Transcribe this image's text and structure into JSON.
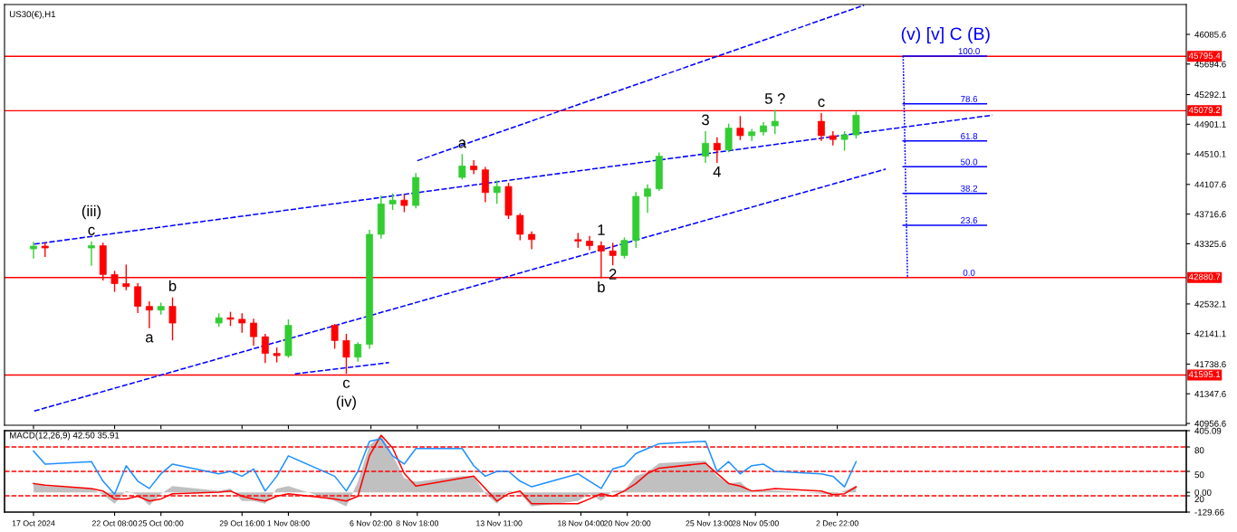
{
  "chart_data": [
    {
      "type": "candlestick",
      "title": "US30(€),H1",
      "x": [
        "2024-10-17T16:00",
        "2024-10-18T08:00",
        "2024-10-21T00:00",
        "2024-10-21T16:00",
        "2024-10-22T08:00",
        "2024-10-23T00:00",
        "2024-10-23T16:00",
        "2024-10-24T08:00",
        "2024-10-25T00:00",
        "2024-10-25T16:00",
        "2024-10-28T08:00",
        "2024-10-29T00:00",
        "2024-10-29T16:00",
        "2024-10-30T08:00",
        "2024-10-31T00:00",
        "2024-10-31T16:00",
        "2024-11-01T08:00",
        "2024-11-04T00:00",
        "2024-11-04T16:00",
        "2024-11-05T08:00",
        "2024-11-06T00:00",
        "2024-11-06T16:00",
        "2024-11-07T08:00",
        "2024-11-08T00:00",
        "2024-11-08T16:00",
        "2024-11-11T08:00",
        "2024-11-12T00:00",
        "2024-11-12T16:00",
        "2024-11-13T08:00",
        "2024-11-14T00:00",
        "2024-11-14T16:00",
        "2024-11-15T08:00",
        "2024-11-18T00:00",
        "2024-11-18T16:00",
        "2024-11-19T08:00",
        "2024-11-20T00:00",
        "2024-11-20T16:00",
        "2024-11-21T08:00",
        "2024-11-22T00:00",
        "2024-11-22T16:00",
        "2024-11-25T08:00",
        "2024-11-26T00:00",
        "2024-11-26T16:00",
        "2024-11-27T08:00",
        "2024-11-28T00:00",
        "2024-11-28T16:00",
        "2024-11-29T08:00",
        "2024-12-02T00:00",
        "2024-12-02T16:00",
        "2024-12-03T08:00",
        "2024-12-04T00:00"
      ],
      "ohlc": [
        [
          43258,
          43342,
          43139,
          43294
        ],
        [
          43294,
          43330,
          43160,
          43270
        ],
        [
          43270,
          43350,
          43043,
          43300
        ],
        [
          43300,
          43330,
          42850,
          42920
        ],
        [
          42920,
          42960,
          42700,
          42800
        ],
        [
          42800,
          43043,
          42720,
          42760
        ],
        [
          42760,
          42800,
          42420,
          42500
        ],
        [
          42500,
          42560,
          42220,
          42450
        ],
        [
          42450,
          42540,
          42400,
          42500
        ],
        [
          42500,
          42610,
          42060,
          42280
        ],
        [
          42280,
          42400,
          42240,
          42350
        ],
        [
          42350,
          42420,
          42250,
          42330
        ],
        [
          42330,
          42400,
          42160,
          42280
        ],
        [
          42280,
          42330,
          41990,
          42100
        ],
        [
          42100,
          42130,
          41760,
          41880
        ],
        [
          41880,
          41950,
          41770,
          41850
        ],
        [
          41850,
          42320,
          41830,
          42250
        ],
        [
          42250,
          42260,
          41950,
          42050
        ],
        [
          42050,
          42130,
          41620,
          41830
        ],
        [
          41830,
          42020,
          41780,
          42000
        ],
        [
          42000,
          43500,
          41950,
          43450
        ],
        [
          43450,
          43950,
          43400,
          43850
        ],
        [
          43850,
          43980,
          43780,
          43900
        ],
        [
          43900,
          43970,
          43750,
          43830
        ],
        [
          43830,
          44250,
          43800,
          44200
        ],
        [
          44200,
          44500,
          44180,
          44350
        ],
        [
          44350,
          44420,
          44250,
          44300
        ],
        [
          44300,
          44330,
          43880,
          44000
        ],
        [
          44000,
          44150,
          43860,
          44080
        ],
        [
          44080,
          44120,
          43660,
          43700
        ],
        [
          43700,
          43720,
          43380,
          43450
        ],
        [
          43450,
          43480,
          43260,
          43380
        ],
        [
          43380,
          43460,
          43280,
          43360
        ],
        [
          43360,
          43420,
          43250,
          43300
        ],
        [
          43300,
          43350,
          42880,
          43230
        ],
        [
          43230,
          43330,
          43050,
          43170
        ],
        [
          43170,
          43400,
          43140,
          43370
        ],
        [
          43370,
          44000,
          43280,
          43950
        ],
        [
          43950,
          44100,
          43740,
          44050
        ],
        [
          44050,
          44520,
          44030,
          44480
        ],
        [
          44480,
          44800,
          44400,
          44650
        ],
        [
          44650,
          44720,
          44400,
          44560
        ],
        [
          44560,
          44900,
          44540,
          44850
        ],
        [
          44850,
          45000,
          44700,
          44750
        ],
        [
          44750,
          44830,
          44690,
          44800
        ],
        [
          44800,
          44920,
          44760,
          44880
        ],
        [
          44880,
          45080,
          44780,
          44940
        ],
        [
          44940,
          45040,
          44690,
          44750
        ],
        [
          44750,
          44800,
          44630,
          44700
        ],
        [
          44700,
          44800,
          44560,
          44760
        ],
        [
          44760,
          45060,
          44720,
          45020
        ]
      ],
      "colors": [
        "#32cd32",
        "#ff0000",
        "#32cd32",
        "#ff0000",
        "#ff0000",
        "#ff0000",
        "#ff0000",
        "#ff0000",
        "#32cd32",
        "#ff0000",
        "#32cd32",
        "#ff0000",
        "#ff0000",
        "#ff0000",
        "#ff0000",
        "#ff0000",
        "#32cd32",
        "#ff0000",
        "#ff0000",
        "#32cd32",
        "#32cd32",
        "#32cd32",
        "#32cd32",
        "#ff0000",
        "#32cd32",
        "#32cd32",
        "#ff0000",
        "#ff0000",
        "#32cd32",
        "#ff0000",
        "#ff0000",
        "#ff0000",
        "#ff0000",
        "#ff0000",
        "#ff0000",
        "#ff0000",
        "#32cd32",
        "#32cd32",
        "#32cd32",
        "#32cd32",
        "#32cd32",
        "#ff0000",
        "#32cd32",
        "#ff0000",
        "#32cd32",
        "#32cd32",
        "#32cd32",
        "#ff0000",
        "#ff0000",
        "#32cd32",
        "#32cd32"
      ],
      "series": [
        {
          "type": "line",
          "color": "#0000ff",
          "line_style": "dashed",
          "x": [
            "2024-10-17T17:00",
            "2024-12-05T17:00"
          ],
          "values": [
            41120,
            44310
          ]
        },
        {
          "type": "line",
          "color": "#0000ff",
          "line_style": "dashed",
          "x": [
            "2024-11-01T17:00",
            "2024-11-07T03:00"
          ],
          "values": [
            41610,
            41760
          ]
        },
        {
          "type": "line",
          "color": "#0000ff",
          "line_style": "dashed",
          "x": [
            "2024-10-17T17:00",
            "2024-12-11T20:00"
          ],
          "values": [
            43320,
            45020
          ]
        },
        {
          "type": "line",
          "color": "#0000ff",
          "line_style": "dashed",
          "x": [
            "2024-11-08T18:00",
            "2024-12-04T11:00"
          ],
          "values": [
            44420,
            46470
          ]
        },
        {
          "type": "line",
          "color": "#0000ff",
          "line_style": "dotted",
          "x": [
            "2024-12-06T17:00",
            "2024-12-06T23:00"
          ],
          "values": [
            45800,
            42880
          ]
        },
        {
          "type": "line",
          "color": "#0000ff",
          "line_style": "solid",
          "x": [
            "2024-12-06T17:00",
            "2024-12-11T12:00"
          ],
          "values": [
            45800,
            45800
          ]
        },
        {
          "type": "line",
          "color": "#0000ff",
          "line_style": "solid",
          "x": [
            "2024-12-06T17:00",
            "2024-12-11T12:00"
          ],
          "values": [
            45170,
            45170
          ]
        },
        {
          "type": "line",
          "color": "#0000ff",
          "line_style": "solid",
          "x": [
            "2024-12-06T17:00",
            "2024-12-11T12:00"
          ],
          "values": [
            44680,
            44680
          ]
        },
        {
          "type": "line",
          "color": "#0000ff",
          "line_style": "solid",
          "x": [
            "2024-12-06T17:00",
            "2024-12-11T12:00"
          ],
          "values": [
            44340,
            44340
          ]
        },
        {
          "type": "line",
          "color": "#0000ff",
          "line_style": "solid",
          "x": [
            "2024-12-06T17:00",
            "2024-12-11T12:00"
          ],
          "values": [
            43990,
            43990
          ]
        },
        {
          "type": "line",
          "color": "#0000ff",
          "line_style": "solid",
          "x": [
            "2024-12-06T17:00",
            "2024-12-11T12:00"
          ],
          "values": [
            43570,
            43570
          ]
        }
      ],
      "ref_lines": [
        {
          "axis": "y",
          "value": 45795.4,
          "label": "45795.4",
          "color": "#ff0000"
        },
        {
          "axis": "y",
          "value": 45079.2,
          "label": "45079.2",
          "color": "#ff0000"
        },
        {
          "axis": "y",
          "value": 42880.7,
          "label": "42880.7",
          "color": "#ff0000"
        },
        {
          "axis": "y",
          "value": 41595.1,
          "label": "41595.1",
          "color": "#ff0000"
        }
      ],
      "annotations": [
        {
          "text": "c",
          "x": "2024-10-21T00:00",
          "y": 43350
        },
        {
          "text": "(iii)",
          "x": "2024-10-21T00:00",
          "y": 43350
        },
        {
          "text": "a",
          "x": "2024-10-24T08:00",
          "y": 42220
        },
        {
          "text": "b",
          "x": "2024-10-25T16:00",
          "y": 42610
        },
        {
          "text": "c",
          "x": "2024-11-04T16:00",
          "y": 41620
        },
        {
          "text": "(iv)",
          "x": "2024-11-04T16:00",
          "y": 41620
        },
        {
          "text": "a",
          "x": "2024-11-11T08:00",
          "y": 44500
        },
        {
          "text": "1",
          "x": "2024-11-19T08:00",
          "y": 43350
        },
        {
          "text": "b",
          "x": "2024-11-19T08:00",
          "y": 42880
        },
        {
          "text": "2",
          "x": "2024-11-20T00:00",
          "y": 43050
        },
        {
          "text": "3",
          "x": "2024-11-25T08:00",
          "y": 44800
        },
        {
          "text": "4",
          "x": "2024-11-26T00:00",
          "y": 44400
        },
        {
          "text": "5 ?",
          "x": "2024-11-29T08:00",
          "y": 45080
        },
        {
          "text": "c",
          "x": "2024-12-02T00:00",
          "y": 45040
        },
        {
          "text": "(v) [v] C (B)",
          "x": "2024-12-06T17:00",
          "y": 45800
        },
        {
          "text": "100.0",
          "x": "2024-12-10T12:00",
          "y": 45800
        },
        {
          "text": "78.6",
          "x": "2024-12-10T12:00",
          "y": 45170
        },
        {
          "text": "61.8",
          "x": "2024-12-10T12:00",
          "y": 44680
        },
        {
          "text": "50.0",
          "x": "2024-12-10T12:00",
          "y": 44340
        },
        {
          "text": "38.2",
          "x": "2024-12-10T12:00",
          "y": 43990
        },
        {
          "text": "23.6",
          "x": "2024-12-10T12:00",
          "y": 43570
        },
        {
          "text": "0.0",
          "x": "2024-12-10T12:00",
          "y": 42880.7
        }
      ],
      "xlim": [
        "2024-10-16T00:00",
        "2024-12-23T00:00"
      ],
      "xticks": [
        {
          "value": "2024-10-17T16:00",
          "label": null
        },
        {
          "value": "2024-10-22T08:00",
          "label": null
        },
        {
          "value": "2024-10-25T00:00",
          "label": null
        },
        {
          "value": "2024-10-29T16:00",
          "label": null
        },
        {
          "value": "2024-11-01T08:00",
          "label": null
        },
        {
          "value": "2024-11-06T02:00",
          "label": null
        },
        {
          "value": "2024-11-08T18:00",
          "label": null
        },
        {
          "value": "2024-11-13T11:00",
          "label": null
        },
        {
          "value": "2024-11-18T04:00",
          "label": null
        },
        {
          "value": "2024-11-20T20:00",
          "label": null
        },
        {
          "value": "2024-11-25T13:00",
          "label": null
        },
        {
          "value": "2024-11-28T05:00",
          "label": null
        },
        {
          "value": "2024-12-02T22:00",
          "label": null
        }
      ],
      "ylim": [
        40933,
        46479
      ],
      "yticks": [
        46085.6,
        45694.6,
        45292.1,
        44901.1,
        44510.1,
        44107.6,
        43716.6,
        43325.6,
        42532.1,
        42141.1,
        41738.6,
        41347.6,
        40956.6
      ],
      "tick_labels": "y"
    },
    {
      "type": "line",
      "title": "MACD(12,26,9) 42.50 35.91",
      "x": [
        "2024-10-17T16:00",
        "2024-10-18T08:00",
        "2024-10-21T00:00",
        "2024-10-21T16:00",
        "2024-10-22T08:00",
        "2024-10-23T00:00",
        "2024-10-23T16:00",
        "2024-10-24T08:00",
        "2024-10-25T00:00",
        "2024-10-25T16:00",
        "2024-10-28T08:00",
        "2024-10-29T00:00",
        "2024-10-29T16:00",
        "2024-10-30T08:00",
        "2024-10-31T00:00",
        "2024-10-31T16:00",
        "2024-11-01T08:00",
        "2024-11-04T00:00",
        "2024-11-04T16:00",
        "2024-11-05T08:00",
        "2024-11-06T00:00",
        "2024-11-06T16:00",
        "2024-11-07T08:00",
        "2024-11-08T00:00",
        "2024-11-08T16:00",
        "2024-11-11T08:00",
        "2024-11-12T00:00",
        "2024-11-12T16:00",
        "2024-11-13T08:00",
        "2024-11-14T00:00",
        "2024-11-14T16:00",
        "2024-11-15T08:00",
        "2024-11-18T00:00",
        "2024-11-18T16:00",
        "2024-11-19T08:00",
        "2024-11-20T00:00",
        "2024-11-20T16:00",
        "2024-11-21T08:00",
        "2024-11-22T00:00",
        "2024-11-22T16:00",
        "2024-11-25T08:00",
        "2024-11-26T00:00",
        "2024-11-26T16:00",
        "2024-11-27T08:00",
        "2024-11-28T00:00",
        "2024-11-28T16:00",
        "2024-11-29T08:00",
        "2024-12-02T00:00",
        "2024-12-02T16:00",
        "2024-12-03T08:00",
        "2024-12-04T00:00"
      ],
      "series": [
        {
          "type": "area",
          "color": "#c0c0c0",
          "values": [
            65,
            41,
            25,
            -15,
            -75,
            10,
            -15,
            -86,
            -9,
            41,
            10,
            25,
            -57,
            -57,
            -75,
            25,
            41,
            -57,
            -92,
            70,
            309,
            375,
            243,
            93,
            70,
            107,
            107,
            -9,
            -75,
            10,
            -9,
            -92,
            -57,
            -9,
            -57,
            10,
            15,
            107,
            134,
            191,
            208,
            107,
            58,
            70,
            1,
            10,
            15,
            -9,
            -15,
            10,
            42
          ]
        },
        {
          "type": "line",
          "color": "#ff0000",
          "values": [
            58,
            47,
            25,
            9,
            -43,
            -43,
            -26,
            -57,
            -43,
            -9,
            1,
            9,
            -26,
            -43,
            -57,
            -26,
            -9,
            -43,
            -57,
            -26,
            241,
            375,
            291,
            124,
            41,
            93,
            107,
            25,
            -57,
            -9,
            9,
            -75,
            -75,
            -43,
            -9,
            -26,
            9,
            58,
            124,
            159,
            191,
            124,
            58,
            41,
            9,
            15,
            25,
            9,
            -15,
            -9,
            36
          ]
        },
        {
          "type": "line",
          "color": "#1e90ff",
          "axis": "y2",
          "values": [
            75,
            59,
            62,
            38,
            22,
            57,
            38,
            29,
            47,
            59,
            47,
            50,
            44,
            53,
            26,
            44,
            69,
            44,
            26,
            50,
            87,
            90,
            69,
            59,
            78,
            78,
            57,
            44,
            50,
            50,
            38,
            31,
            47,
            38,
            29,
            53,
            57,
            72,
            78,
            84,
            87,
            50,
            62,
            47,
            57,
            59,
            50,
            47,
            44,
            31,
            62
          ]
        }
      ],
      "ref_lines": [
        {
          "axis": "y2",
          "value": 80,
          "color": "#ff0000",
          "line_style": "dashed"
        },
        {
          "axis": "y2",
          "value": 50,
          "color": "#ff0000",
          "line_style": "dashed"
        },
        {
          "axis": "y2",
          "value": 20,
          "color": "#ff0000",
          "line_style": "dashed"
        }
      ],
      "xlim": [
        "2024-10-16T00:00",
        "2024-12-23T00:00"
      ],
      "xticks": [
        {
          "value": "2024-10-17T16:00",
          "label": "17 Oct 2024"
        },
        {
          "value": "2024-10-22T08:00",
          "label": "22 Oct 08:00"
        },
        {
          "value": "2024-10-25T00:00",
          "label": "25 Oct 00:00"
        },
        {
          "value": "2024-10-29T16:00",
          "label": "29 Oct 16:00"
        },
        {
          "value": "2024-11-01T08:00",
          "label": "1 Nov 08:00"
        },
        {
          "value": "2024-11-06T02:00",
          "label": "6 Nov 02:00"
        },
        {
          "value": "2024-11-08T18:00",
          "label": "8 Nov 18:00"
        },
        {
          "value": "2024-11-13T11:00",
          "label": "13 Nov 11:00"
        },
        {
          "value": "2024-11-18T04:00",
          "label": "18 Nov 04:00"
        },
        {
          "value": "2024-11-20T20:00",
          "label": "20 Nov 20:00"
        },
        {
          "value": "2024-11-25T13:00",
          "label": "25 Nov 13:00"
        },
        {
          "value": "2024-11-28T05:00",
          "label": "28 Nov 05:00"
        },
        {
          "value": "2024-12-02T22:00",
          "label": "2 Dec 22:00"
        }
      ],
      "ylim": [
        -129.66,
        405.09
      ],
      "yticks": [
        {
          "value": 405.09,
          "label": "405.09"
        },
        {
          "value": 0,
          "label": "0.00"
        },
        {
          "value": -129.66,
          "label": "-129.66"
        }
      ],
      "y2lim": [
        0,
        100
      ],
      "y2ticks": [
        80,
        50,
        20
      ]
    }
  ]
}
